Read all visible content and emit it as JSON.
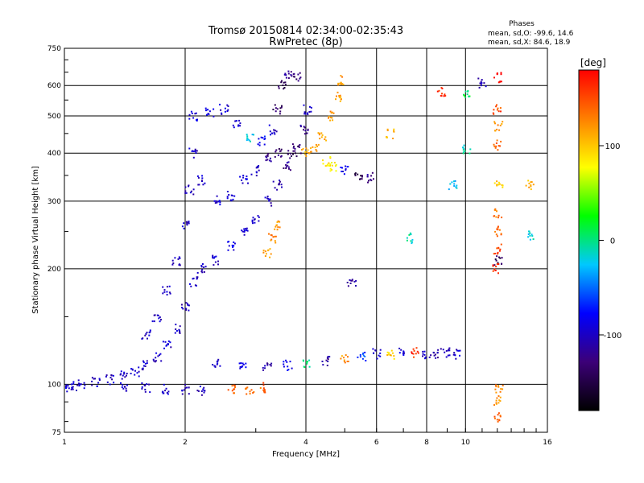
{
  "chart_data": {
    "type": "scatter",
    "title": "Tromsø 20150814 02:34:00-02:35:43",
    "subtitle": "RwPretec (8p)",
    "xlabel": "Frequency [MHz]",
    "ylabel": "Stationary phase Virtual Height [km]",
    "x_scale": "log",
    "y_scale": "log",
    "xlim": [
      1,
      16
    ],
    "ylim": [
      75,
      750
    ],
    "x_ticks": [
      "1",
      "2",
      "4",
      "6",
      "8",
      "10",
      "16"
    ],
    "y_ticks": [
      "75",
      "100",
      "200",
      "300",
      "400",
      "500",
      "600",
      "750"
    ],
    "grid": true,
    "stats_header": "Phases",
    "stats_lines": [
      "mean, sd,O: -99.6, 14.6",
      "mean, sd,X:  84.6, 18.9"
    ],
    "colorbar": {
      "unit": "[deg]",
      "range": [
        -180,
        180
      ],
      "ticks": [
        "100",
        "0",
        "-100"
      ],
      "colors": [
        "#000000",
        "#3c0078",
        "#0000ff",
        "#00c8ff",
        "#00ff00",
        "#ffff00",
        "#ff8000",
        "#ff0000"
      ]
    },
    "series": [
      {
        "traces": [
          [
            1.0,
            98,
            -95
          ],
          [
            1.05,
            99,
            -100
          ],
          [
            1.1,
            100,
            -100
          ],
          [
            1.2,
            101,
            -98
          ],
          [
            1.3,
            103,
            -100
          ],
          [
            1.4,
            105,
            -102
          ],
          [
            1.5,
            108,
            -97
          ],
          [
            1.6,
            112,
            -100
          ],
          [
            1.7,
            118,
            -100
          ],
          [
            1.8,
            126,
            -98
          ],
          [
            1.9,
            140,
            -100
          ],
          [
            2.0,
            160,
            -102
          ],
          [
            2.1,
            185,
            -98
          ],
          [
            2.2,
            200,
            -100
          ],
          [
            2.4,
            210,
            -96
          ],
          [
            2.6,
            230,
            -90
          ],
          [
            2.8,
            250,
            -92
          ],
          [
            3.0,
            270,
            -95
          ],
          [
            3.2,
            300,
            -100
          ],
          [
            3.4,
            330,
            -110
          ],
          [
            3.6,
            370,
            -120
          ],
          [
            3.8,
            410,
            -130
          ],
          [
            3.95,
            460,
            -115
          ],
          [
            4.05,
            520,
            -100
          ]
        ]
      },
      {
        "traces": [
          [
            1.4,
            98,
            -100
          ],
          [
            1.6,
            98,
            -100
          ],
          [
            1.8,
            97,
            -100
          ],
          [
            2.0,
            97,
            -100
          ],
          [
            2.2,
            96,
            -100
          ]
        ]
      },
      {
        "traces": [
          [
            1.6,
            135,
            -100
          ],
          [
            1.7,
            150,
            -98
          ],
          [
            1.8,
            175,
            -100
          ],
          [
            1.9,
            210,
            -100
          ],
          [
            2.0,
            260,
            -100
          ],
          [
            2.05,
            320,
            -105
          ],
          [
            2.1,
            400,
            -100
          ],
          [
            2.2,
            340,
            -100
          ],
          [
            2.4,
            300,
            -95
          ],
          [
            2.6,
            310,
            -95
          ],
          [
            2.8,
            340,
            -90
          ],
          [
            3.0,
            360,
            -100
          ],
          [
            3.2,
            390,
            -120
          ],
          [
            3.4,
            400,
            -130
          ],
          [
            3.7,
            400,
            -140
          ]
        ]
      },
      {
        "traces": [
          [
            2.1,
            500,
            -90
          ],
          [
            2.3,
            510,
            -95
          ],
          [
            2.5,
            520,
            -95
          ],
          [
            2.7,
            480,
            -90
          ],
          [
            2.9,
            440,
            -20
          ],
          [
            3.1,
            430,
            -80
          ],
          [
            3.3,
            460,
            -100
          ],
          [
            3.4,
            520,
            -140
          ],
          [
            3.5,
            600,
            -140
          ],
          [
            3.6,
            640,
            -120
          ],
          [
            3.8,
            630,
            -130
          ]
        ]
      },
      {
        "traces": [
          [
            2.6,
            97,
            140
          ],
          [
            2.9,
            97,
            130
          ],
          [
            3.1,
            98,
            140
          ],
          [
            3.2,
            220,
            120
          ],
          [
            3.3,
            240,
            130
          ],
          [
            3.4,
            260,
            120
          ]
        ]
      },
      {
        "traces": [
          [
            4.0,
            400,
            110
          ],
          [
            4.2,
            410,
            115
          ],
          [
            4.4,
            440,
            120
          ],
          [
            4.6,
            500,
            120
          ],
          [
            4.8,
            560,
            115
          ],
          [
            4.9,
            620,
            120
          ],
          [
            4.5,
            380,
            90
          ],
          [
            4.7,
            370,
            80
          ],
          [
            5.0,
            360,
            -90
          ],
          [
            5.4,
            350,
            -150
          ],
          [
            5.8,
            345,
            -120
          ]
        ]
      },
      {
        "traces": [
          [
            2.4,
            114,
            -100
          ],
          [
            2.8,
            113,
            -90
          ],
          [
            3.2,
            112,
            -110
          ],
          [
            3.6,
            112,
            -80
          ],
          [
            4.0,
            113,
            0
          ],
          [
            4.5,
            115,
            -120
          ],
          [
            5.0,
            116,
            120
          ],
          [
            5.5,
            118,
            -60
          ],
          [
            6.0,
            120,
            -100
          ],
          [
            6.5,
            120,
            100
          ],
          [
            7.0,
            121,
            -90
          ],
          [
            7.5,
            121,
            160
          ],
          [
            8.0,
            120,
            -100
          ],
          [
            8.5,
            120,
            -110
          ],
          [
            9.0,
            121,
            -100
          ],
          [
            9.5,
            120,
            -100
          ]
        ]
      },
      {
        "traces": [
          [
            12.0,
            630,
            180
          ],
          [
            12.0,
            520,
            150
          ],
          [
            12.1,
            470,
            120
          ],
          [
            12.0,
            420,
            140
          ],
          [
            12.1,
            330,
            100
          ],
          [
            12.0,
            280,
            130
          ],
          [
            12.1,
            250,
            140
          ],
          [
            12.0,
            225,
            150
          ],
          [
            12.1,
            210,
            -140
          ],
          [
            12.0,
            200,
            160
          ],
          [
            12.1,
            98,
            130
          ],
          [
            12.0,
            91,
            120
          ],
          [
            12.1,
            82,
            140
          ],
          [
            10.0,
            570,
            10
          ],
          [
            10.1,
            410,
            -10
          ],
          [
            9.3,
            330,
            -30
          ],
          [
            8.7,
            580,
            165
          ],
          [
            14.5,
            330,
            110
          ],
          [
            14.6,
            245,
            -20
          ],
          [
            11.0,
            610,
            -100
          ],
          [
            6.5,
            450,
            105
          ],
          [
            7.2,
            240,
            -10
          ],
          [
            5.2,
            185,
            -110
          ]
        ]
      }
    ]
  }
}
